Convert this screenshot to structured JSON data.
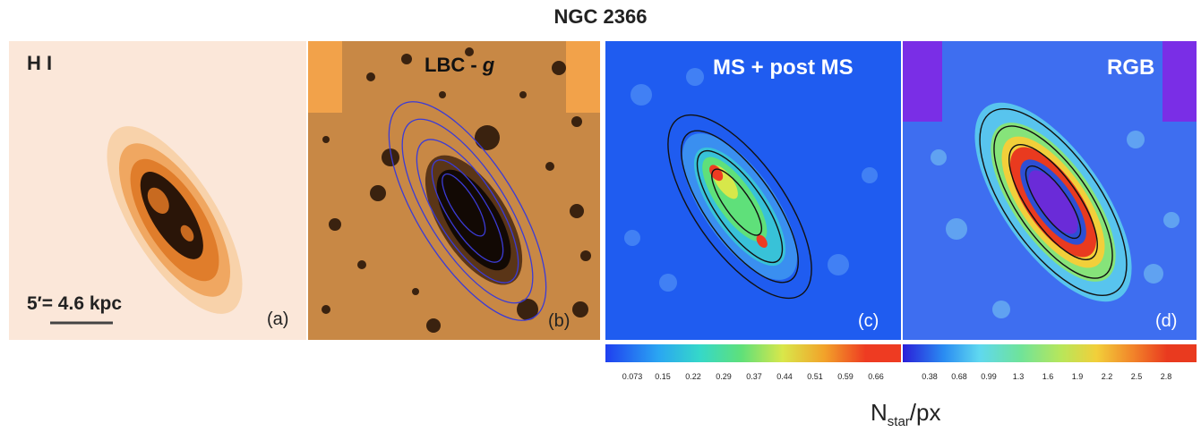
{
  "title": "NGC 2366",
  "panels": {
    "a": {
      "label": "H I",
      "tag": "(a)",
      "scalebar": "5′= 4.6 kpc"
    },
    "b": {
      "label_prefix": "LBC - ",
      "label_band": "g",
      "tag": "(b)"
    },
    "c": {
      "label": "MS + post MS",
      "tag": "(c)"
    },
    "d": {
      "label": "RGB",
      "tag": "(d)"
    }
  },
  "colorbars": {
    "c_ticks": [
      "0.073",
      "0.15",
      "0.22",
      "0.29",
      "0.37",
      "0.44",
      "0.51",
      "0.59",
      "0.66"
    ],
    "d_ticks": [
      "0.38",
      "0.68",
      "0.99",
      "1.3",
      "1.6",
      "1.9",
      "2.2",
      "2.5",
      "2.8"
    ]
  },
  "units": {
    "main": "N",
    "sub": "star",
    "suffix": "/px"
  },
  "colors": {
    "hi_background": "#fbe7d9",
    "ms_background": "#1f5cf0",
    "rgb_background": "#7a2ee6",
    "contour_b": "#3b3bd6",
    "contour_cd": "#111111"
  }
}
